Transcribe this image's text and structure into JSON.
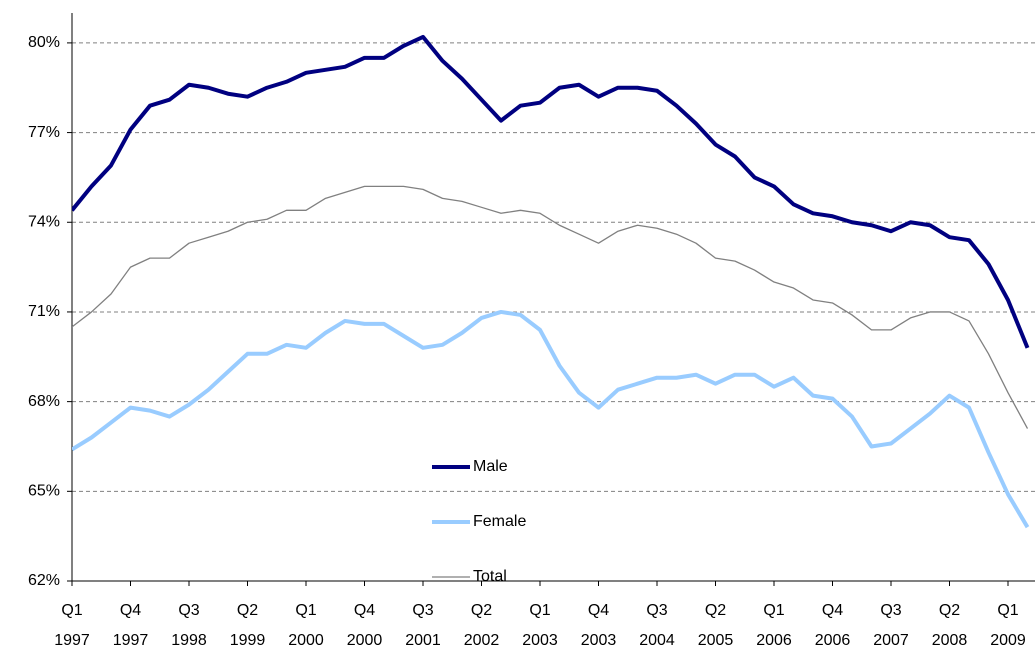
{
  "chart_data": {
    "type": "line",
    "categories": [
      "Q1 1997",
      null,
      null,
      "Q4 1997",
      null,
      null,
      "Q3 1998",
      null,
      null,
      "Q2 1999",
      null,
      null,
      "Q1 2000",
      null,
      null,
      "Q4 2000",
      null,
      null,
      "Q3 2001",
      null,
      null,
      "Q2 2002",
      null,
      null,
      "Q1 2003",
      null,
      null,
      "Q4 2003",
      null,
      null,
      "Q3 2004",
      null,
      null,
      "Q2 2005",
      null,
      null,
      "Q1 2006",
      null,
      null,
      "Q4 2006",
      null,
      null,
      "Q3 2007",
      null,
      null,
      "Q2 2008",
      null,
      null,
      "Q1 2009",
      null
    ],
    "series": [
      {
        "name": "Male",
        "color": "#000080",
        "values": [
          74.4,
          75.2,
          75.9,
          77.1,
          77.9,
          78.1,
          78.6,
          78.5,
          78.3,
          78.2,
          78.5,
          78.7,
          79.0,
          79.1,
          79.2,
          79.5,
          79.5,
          79.9,
          80.2,
          79.4,
          78.8,
          78.1,
          77.4,
          77.9,
          78.0,
          78.5,
          78.6,
          78.2,
          78.5,
          78.5,
          78.4,
          77.9,
          77.3,
          76.6,
          76.2,
          75.5,
          75.2,
          74.6,
          74.3,
          74.2,
          74.0,
          73.9,
          73.7,
          74.0,
          73.9,
          73.5,
          73.4,
          72.6,
          71.4,
          69.8
        ]
      },
      {
        "name": "Female",
        "color": "#99ccff",
        "values": [
          66.4,
          66.8,
          67.3,
          67.8,
          67.7,
          67.5,
          67.9,
          68.4,
          69.0,
          69.6,
          69.6,
          69.9,
          69.8,
          70.3,
          70.7,
          70.6,
          70.6,
          70.2,
          69.8,
          69.9,
          70.3,
          70.8,
          71.0,
          70.9,
          70.4,
          69.2,
          68.3,
          67.8,
          68.4,
          68.6,
          68.8,
          68.8,
          68.9,
          68.6,
          68.9,
          68.9,
          68.5,
          68.8,
          68.2,
          68.1,
          67.5,
          66.5,
          66.6,
          67.1,
          67.6,
          68.2,
          67.8,
          66.3,
          64.9,
          63.8
        ]
      },
      {
        "name": "Total",
        "color": "#808080",
        "values": [
          70.5,
          71.0,
          71.6,
          72.5,
          72.8,
          72.8,
          73.3,
          73.5,
          73.7,
          74.0,
          74.1,
          74.4,
          74.4,
          74.8,
          75.0,
          75.2,
          75.2,
          75.2,
          75.1,
          74.8,
          74.7,
          74.5,
          74.3,
          74.4,
          74.3,
          73.9,
          73.6,
          73.3,
          73.7,
          73.9,
          73.8,
          73.6,
          73.3,
          72.8,
          72.7,
          72.4,
          72.0,
          71.8,
          71.4,
          71.3,
          70.9,
          70.4,
          70.4,
          70.8,
          71.0,
          71.0,
          70.7,
          69.6,
          68.3,
          67.1
        ]
      }
    ],
    "ylim": [
      62,
      81
    ],
    "yticks": [
      {
        "value": 62,
        "label": "62%"
      },
      {
        "value": 65,
        "label": "65%"
      },
      {
        "value": 68,
        "label": "68%"
      },
      {
        "value": 71,
        "label": "71%"
      },
      {
        "value": 74,
        "label": "74%"
      },
      {
        "value": 77,
        "label": "77%"
      },
      {
        "value": 80,
        "label": "80%"
      }
    ],
    "grid": true,
    "legend": "center"
  }
}
